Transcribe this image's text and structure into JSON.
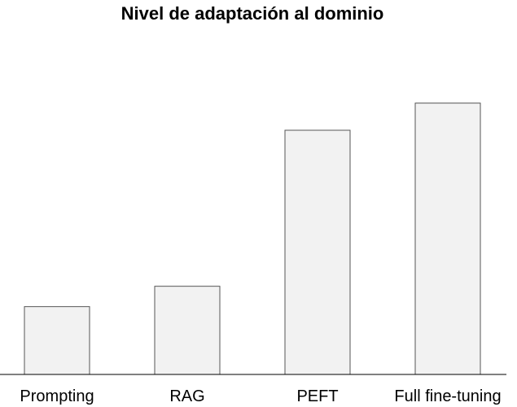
{
  "chart_data": {
    "type": "bar",
    "title": "Nivel de adaptación al dominio",
    "categories": [
      "Prompting",
      "RAG",
      "PEFT",
      "Full fine-tuning"
    ],
    "values": [
      1.0,
      1.3,
      3.6,
      4.0
    ],
    "xlabel": "",
    "ylabel": "",
    "ylim": [
      0,
      4.5
    ],
    "y_axis_visible": false,
    "grid": false,
    "legend": "none",
    "colors": {
      "bar_fill": "#f2f2f2",
      "bar_stroke": "#555555",
      "axis": "#000000",
      "text": "#000000"
    }
  }
}
